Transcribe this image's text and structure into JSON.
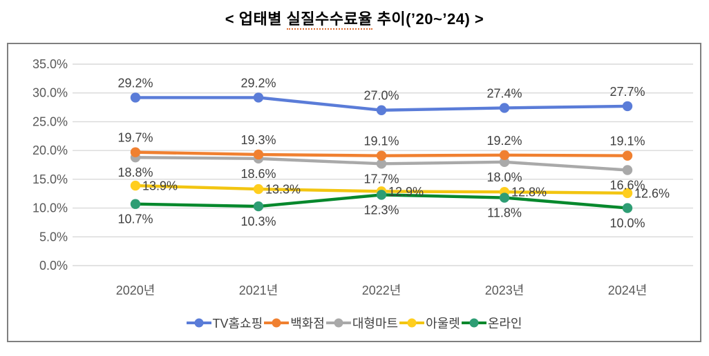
{
  "title": {
    "prefix": "< 업태별 ",
    "underlined": "실질수수료율",
    "suffix": " 추이(’20~’24) >"
  },
  "chart_data": {
    "type": "line",
    "title": "< 업태별 실질수수료율 추이(’20~’24) >",
    "categories": [
      "2020년",
      "2021년",
      "2022년",
      "2023년",
      "2024년"
    ],
    "series": [
      {
        "name": "TV홈쇼핑",
        "color": "#5A7CD8",
        "marker_color": "#5A7CD8",
        "values": [
          29.2,
          29.2,
          27.0,
          27.4,
          27.7
        ],
        "label_position": "above"
      },
      {
        "name": "백화점",
        "color": "#F08030",
        "marker_color": "#F08030",
        "values": [
          19.7,
          19.3,
          19.1,
          19.2,
          19.1
        ],
        "label_position": "above"
      },
      {
        "name": "대형마트",
        "color": "#A9A9A9",
        "marker_color": "#A9A9A9",
        "values": [
          18.8,
          18.6,
          17.7,
          18.0,
          16.6
        ],
        "label_position": "below"
      },
      {
        "name": "아울렛",
        "color": "#F2C511",
        "marker_color": "#FFCE1E",
        "values": [
          13.9,
          13.3,
          12.9,
          12.8,
          12.6
        ],
        "label_position": "right"
      },
      {
        "name": "온라인",
        "color": "#05882C",
        "marker_color": "#2E9D74",
        "values": [
          10.7,
          10.3,
          12.3,
          11.8,
          10.0
        ],
        "label_position": "below"
      }
    ],
    "xlabel": "",
    "ylabel": "",
    "ylim": [
      0,
      35
    ],
    "y_step": 5,
    "y_tick_labels": [
      "0.0%",
      "5.0%",
      "10.0%",
      "15.0%",
      "20.0%",
      "25.0%",
      "30.0%",
      "35.0%"
    ],
    "value_suffix": "%",
    "grid": "horizontal-only",
    "legend_position": "bottom"
  },
  "colors": {
    "gridline": "#D9D9D9",
    "axis_tick_text": "#595959",
    "data_label_text": "#3F3F3F",
    "figure_border": "#7F7F7F",
    "title_text": "#000000",
    "spellcheck_underline": "#DD6B2F"
  }
}
